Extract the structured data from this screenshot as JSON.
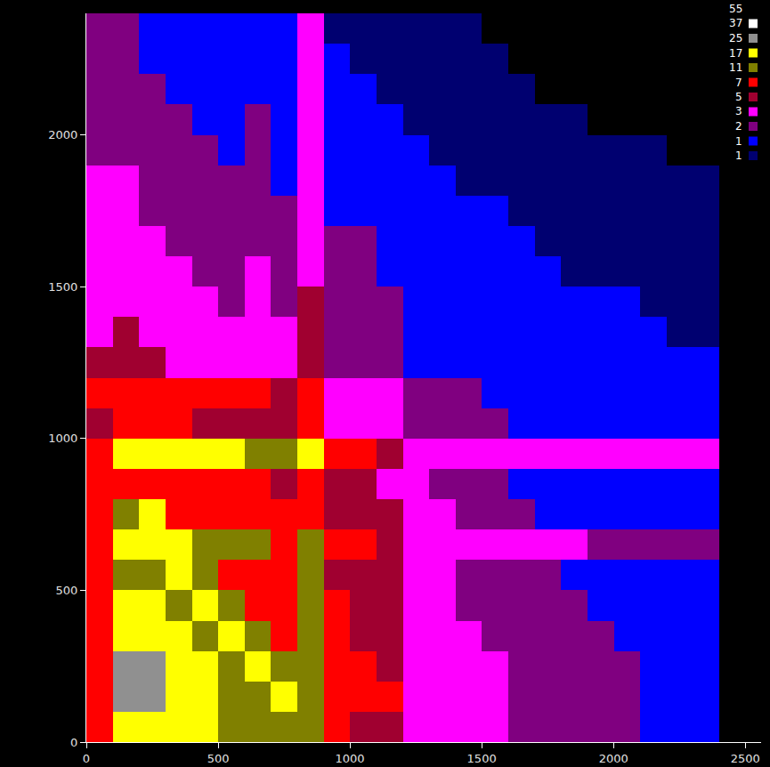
{
  "chart_data": {
    "type": "heatmap",
    "x_bins": [
      0,
      100,
      200,
      300,
      400,
      500,
      600,
      700,
      800,
      900,
      1000,
      1100,
      1200,
      1300,
      1400,
      1500,
      1600,
      1700,
      1800,
      1900,
      2000,
      2100,
      2200,
      2300,
      2400
    ],
    "y_bins": [
      0,
      100,
      200,
      300,
      400,
      500,
      600,
      700,
      800,
      900,
      1000,
      1100,
      1200,
      1300,
      1400,
      1500,
      1600,
      1700,
      1800,
      1900,
      2000,
      2100,
      2200,
      2300,
      2400
    ],
    "z": [
      [
        8,
        20,
        22,
        20,
        17,
        14,
        12,
        11,
        14,
        7,
        6,
        6,
        4,
        3,
        3,
        3,
        2,
        2,
        2,
        2,
        2,
        1,
        1,
        1
      ],
      [
        10,
        25,
        28,
        22,
        17,
        14,
        12,
        17,
        14,
        8,
        7,
        7,
        4,
        3,
        3,
        3,
        2,
        2,
        2,
        2,
        2,
        1,
        1,
        1
      ],
      [
        10,
        25,
        25,
        20,
        17,
        14,
        17,
        12,
        14,
        8,
        7,
        6,
        4,
        3,
        3,
        3,
        2,
        2,
        2,
        2,
        2,
        1,
        1,
        1
      ],
      [
        9,
        20,
        20,
        17,
        14,
        17,
        11,
        9,
        12,
        7,
        6,
        6,
        4,
        3,
        3,
        2,
        2,
        2,
        2,
        2,
        1,
        1,
        1,
        1
      ],
      [
        8,
        17,
        17,
        14,
        17,
        11,
        10,
        8,
        11,
        7,
        6,
        5,
        3,
        3,
        2,
        2,
        2,
        2,
        2,
        1,
        1,
        1,
        1,
        1
      ],
      [
        8,
        15,
        14,
        17,
        11,
        9,
        9,
        8,
        11,
        6,
        6,
        5,
        3,
        3,
        2,
        2,
        2,
        2,
        1,
        1,
        1,
        1,
        1,
        1
      ],
      [
        9,
        17,
        17,
        17,
        12,
        11,
        13,
        10,
        14,
        7,
        7,
        6,
        4,
        3,
        3,
        3,
        3,
        3,
        3,
        2,
        2,
        2,
        2,
        2
      ],
      [
        7,
        12,
        17,
        9,
        8,
        7,
        8,
        7,
        10,
        6,
        5,
        5,
        3,
        3,
        2,
        2,
        2,
        1,
        1,
        1,
        1,
        1,
        1,
        1
      ],
      [
        7,
        10,
        9,
        8,
        7,
        7,
        7,
        6,
        9,
        5,
        5,
        4,
        3,
        2,
        2,
        2,
        1,
        1,
        1,
        1,
        1,
        1,
        1,
        1
      ],
      [
        10,
        17,
        17,
        17,
        17,
        17,
        14,
        12,
        17,
        7,
        7,
        6,
        4,
        4,
        3,
        3,
        3,
        3,
        3,
        3,
        3,
        3,
        3,
        3
      ],
      [
        6,
        8,
        7,
        7,
        6,
        6,
        6,
        5,
        8,
        4,
        4,
        4,
        2,
        2,
        2,
        2,
        1,
        1,
        1,
        1,
        1,
        1,
        1,
        1
      ],
      [
        7,
        9,
        8,
        8,
        7,
        7,
        7,
        6,
        9,
        4,
        4,
        4,
        2,
        2,
        2,
        1,
        1,
        1,
        1,
        1,
        1,
        1,
        1,
        1
      ],
      [
        5,
        6,
        5,
        4,
        3,
        3,
        3,
        3,
        6,
        2,
        2,
        2,
        1,
        1,
        1,
        1,
        1,
        1,
        1,
        1,
        1,
        1,
        1,
        1
      ],
      [
        4,
        5,
        4,
        3,
        3,
        3,
        3,
        3,
        5,
        2,
        2,
        2,
        1,
        1,
        1,
        1,
        1,
        1,
        1,
        1,
        1,
        1,
        0.8,
        0.8
      ],
      [
        4,
        4,
        3,
        3,
        3,
        2,
        3,
        2,
        5,
        2,
        2,
        2,
        1,
        1,
        1,
        1,
        1,
        1,
        1,
        1,
        1,
        0.8,
        0.8,
        0.8
      ],
      [
        3,
        4,
        3,
        3,
        2,
        2,
        3,
        2,
        4,
        2,
        2,
        1,
        1,
        1,
        1,
        1,
        1,
        1,
        0.8,
        0.8,
        0.8,
        0.8,
        0.8,
        0.8
      ],
      [
        3,
        3,
        3,
        2,
        2,
        2,
        2,
        2,
        4,
        2,
        2,
        1,
        1,
        1,
        1,
        1,
        1,
        0.8,
        0.8,
        0.8,
        0.8,
        0.8,
        0.6,
        0.6
      ],
      [
        3,
        3,
        2,
        2,
        2,
        2,
        2,
        2,
        4,
        1,
        1,
        1,
        1,
        1,
        1,
        1,
        0.8,
        0.8,
        0.8,
        0.8,
        0.6,
        0.6,
        0.6,
        0.6
      ],
      [
        3,
        3,
        2,
        2,
        2,
        2,
        2,
        1,
        3,
        1,
        1,
        1,
        1,
        1,
        0.8,
        0.8,
        0.8,
        0.8,
        0.6,
        0.6,
        0.6,
        0.6,
        0.6,
        0.6
      ],
      [
        2,
        2,
        2,
        2,
        2,
        1,
        2,
        1,
        3,
        1,
        1,
        1,
        1,
        0.8,
        0.8,
        0.8,
        0.6,
        0.6,
        0.6,
        0.6,
        0.6,
        0.6,
        0.5,
        0.5
      ],
      [
        2,
        2,
        2,
        2,
        1,
        1,
        2,
        1,
        3,
        1,
        1,
        1,
        0.8,
        0.8,
        0.8,
        0.6,
        0.6,
        0.6,
        0.6,
        0.5,
        0.5,
        0.5,
        0.5,
        0.5
      ],
      [
        2,
        2,
        2,
        1,
        1,
        1,
        1,
        1,
        3,
        1,
        1,
        0.8,
        0.8,
        0.8,
        0.6,
        0.6,
        0.6,
        0.5,
        0.5,
        0.5,
        0.5,
        0.5,
        0.5,
        0.5
      ],
      [
        2,
        2,
        1,
        1,
        1,
        1,
        1,
        1,
        3,
        1,
        0.8,
        0.8,
        0.8,
        0.6,
        0.6,
        0.6,
        0.5,
        0.5,
        0.5,
        0.5,
        0.5,
        0.5,
        0.5,
        0.5
      ],
      [
        2,
        2,
        1,
        1,
        1,
        1,
        1,
        1,
        3,
        0.8,
        0.8,
        0.8,
        0.6,
        0.6,
        0.6,
        0.5,
        0.5,
        0.5,
        0.5,
        0.5,
        0.5,
        0.5,
        0.5,
        0.5
      ]
    ],
    "xlim": [
      0,
      2560
    ],
    "ylim": [
      0,
      2400
    ],
    "xticks": [
      0,
      500,
      1000,
      1500,
      2000,
      2500
    ],
    "yticks": [
      0,
      500,
      1000,
      1500,
      2000
    ],
    "colorbar": {
      "range": [
        0,
        55
      ],
      "ticks": [
        {
          "value": 0.6,
          "label": "1"
        },
        1,
        2,
        3,
        5,
        7,
        11,
        17,
        25,
        37,
        55
      ],
      "colors": [
        "#000070",
        "#0000ff",
        "#800080",
        "#ff00ff",
        "#a00030",
        "#ff0000",
        "#808000",
        "#ffff00",
        "#909090",
        "#ffffff"
      ]
    }
  }
}
